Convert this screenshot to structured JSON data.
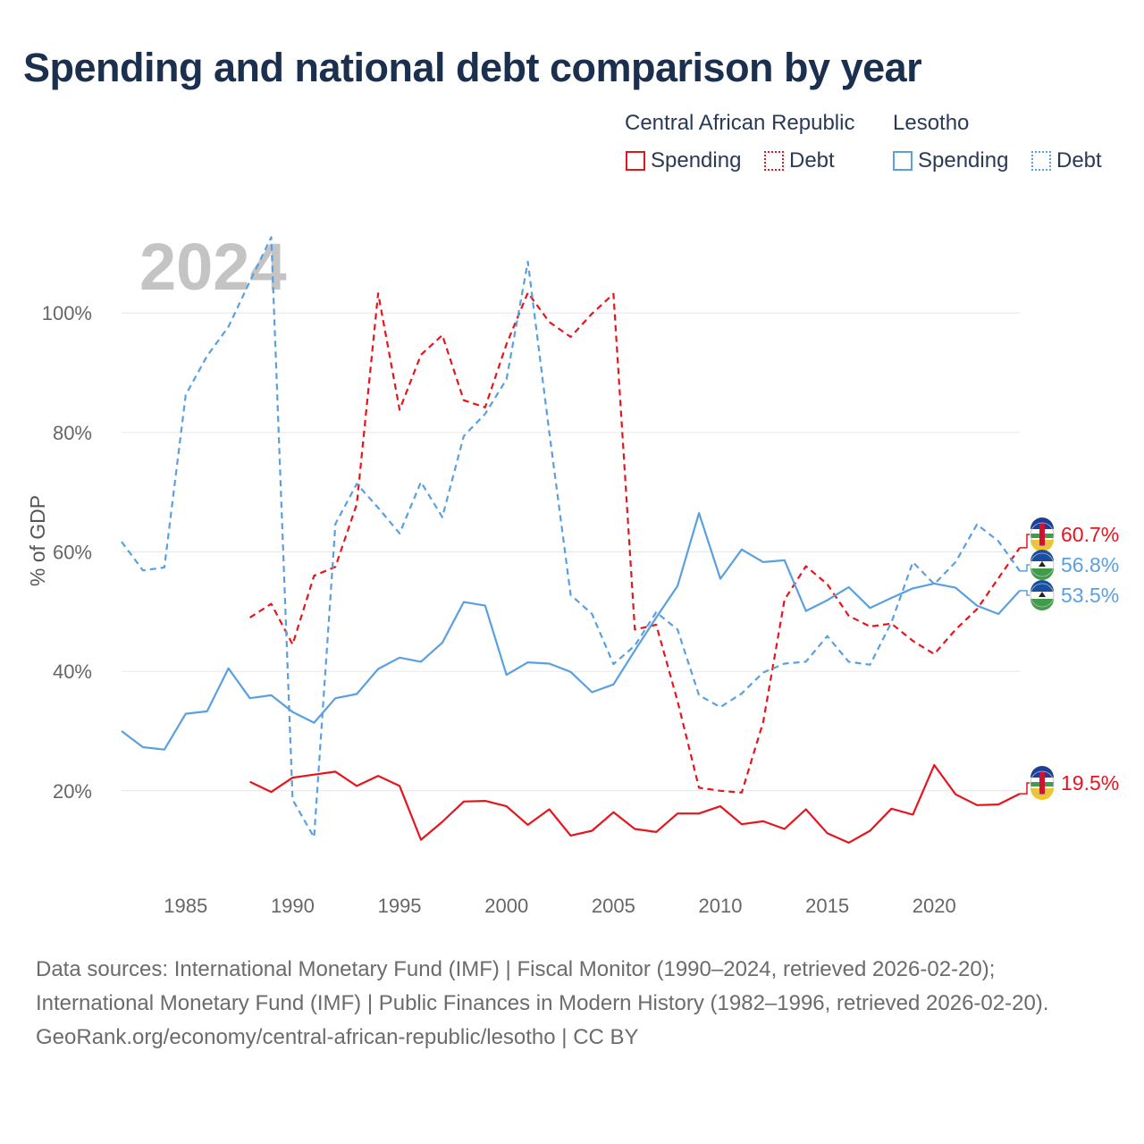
{
  "title": "Spending and national debt comparison by year",
  "legend": {
    "groups": [
      {
        "country": "Central African Republic",
        "color": "#e8141c",
        "spending_label": "Spending",
        "debt_label": "Debt"
      },
      {
        "country": "Lesotho",
        "color": "#5aa0e0",
        "spending_label": "Spending",
        "debt_label": "Debt"
      }
    ]
  },
  "footer": {
    "source_line": "Data sources: International Monetary Fund (IMF) | Fiscal Monitor (1990–2024, retrieved 2026-02-20); International Monetary Fund (IMF) | Public Finances in Modern History (1982–1996, retrieved 2026-02-20).",
    "credit_line": "GeoRank.org/economy/central-african-republic/lesotho | CC BY"
  },
  "chart_data": {
    "type": "line",
    "year_watermark": "2024",
    "ylabel": "% of GDP",
    "xlim": [
      1982,
      2024
    ],
    "ylim": [
      5,
      115
    ],
    "x_ticks": [
      1985,
      1990,
      1995,
      2000,
      2005,
      2010,
      2015,
      2020
    ],
    "y_ticks": [
      20,
      40,
      60,
      80,
      100
    ],
    "y_tick_labels": [
      "20%",
      "40%",
      "60%",
      "80%",
      "100%"
    ],
    "grid": true,
    "series": [
      {
        "name": "Central African Republic Spending",
        "country": "Central African Republic",
        "metric": "Spending",
        "color": "#e8141c",
        "dashed": false,
        "start_year": 1988,
        "values": [
          21.5,
          19.8,
          22.2,
          22.7,
          23.2,
          20.8,
          22.5,
          20.8,
          11.8,
          14.8,
          18.2,
          18.3,
          17.4,
          14.3,
          16.9,
          12.5,
          13.3,
          16.4,
          13.6,
          13.1,
          16.2,
          16.2,
          17.4,
          14.4,
          14.9,
          13.6,
          16.9,
          12.9,
          11.3,
          13.3,
          17.0,
          16.0,
          24.3,
          19.4,
          17.6,
          17.7,
          19.5
        ],
        "end_label": "19.5%"
      },
      {
        "name": "Central African Republic Debt",
        "country": "Central African Republic",
        "metric": "Debt",
        "color": "#e8141c",
        "dashed": true,
        "start_year": 1988,
        "values": [
          49.0,
          51.3,
          44.5,
          56.0,
          57.5,
          68.0,
          103.3,
          83.8,
          93.0,
          96.3,
          85.4,
          84.2,
          94.8,
          103.4,
          98.5,
          96.0,
          99.9,
          103.2,
          47.0,
          47.8,
          35.0,
          20.5,
          20.0,
          19.7,
          31.5,
          52.0,
          57.6,
          54.6,
          49.3,
          47.5,
          48.0,
          45.1,
          42.9,
          47.0,
          50.4,
          55.6,
          60.7
        ],
        "end_label": "60.7%"
      },
      {
        "name": "Lesotho Spending",
        "country": "Lesotho",
        "metric": "Spending",
        "color": "#5aa0e0",
        "dashed": false,
        "start_year": 1982,
        "values": [
          30.0,
          27.3,
          26.9,
          32.9,
          33.3,
          40.5,
          35.5,
          36.0,
          33.2,
          31.4,
          35.5,
          36.2,
          40.4,
          42.3,
          41.6,
          44.8,
          51.6,
          51.0,
          39.4,
          41.5,
          41.3,
          39.9,
          36.5,
          37.8,
          43.5,
          49.0,
          54.3,
          66.5,
          55.5,
          60.4,
          58.3,
          58.6,
          50.1,
          51.9,
          54.1,
          50.6,
          52.3,
          53.9,
          54.7,
          54.0,
          51.0,
          49.6,
          53.5
        ],
        "end_label": "53.5%"
      },
      {
        "name": "Lesotho Debt",
        "country": "Lesotho",
        "metric": "Debt",
        "color": "#5aa0e0",
        "dashed": true,
        "start_year": 1982,
        "values": [
          61.7,
          56.9,
          57.4,
          86.3,
          92.8,
          97.7,
          105.3,
          112.7,
          18.5,
          12.2,
          64.7,
          71.4,
          67.4,
          63.1,
          71.7,
          65.8,
          79.4,
          83.1,
          88.9,
          108.6,
          80.0,
          52.8,
          49.6,
          41.2,
          44.3,
          49.9,
          47.0,
          36.0,
          34.0,
          36.3,
          39.8,
          41.3,
          41.6,
          45.9,
          41.6,
          41.1,
          48.2,
          58.3,
          54.6,
          58.3,
          64.6,
          61.8,
          56.8
        ],
        "end_label": "56.8%"
      }
    ]
  }
}
